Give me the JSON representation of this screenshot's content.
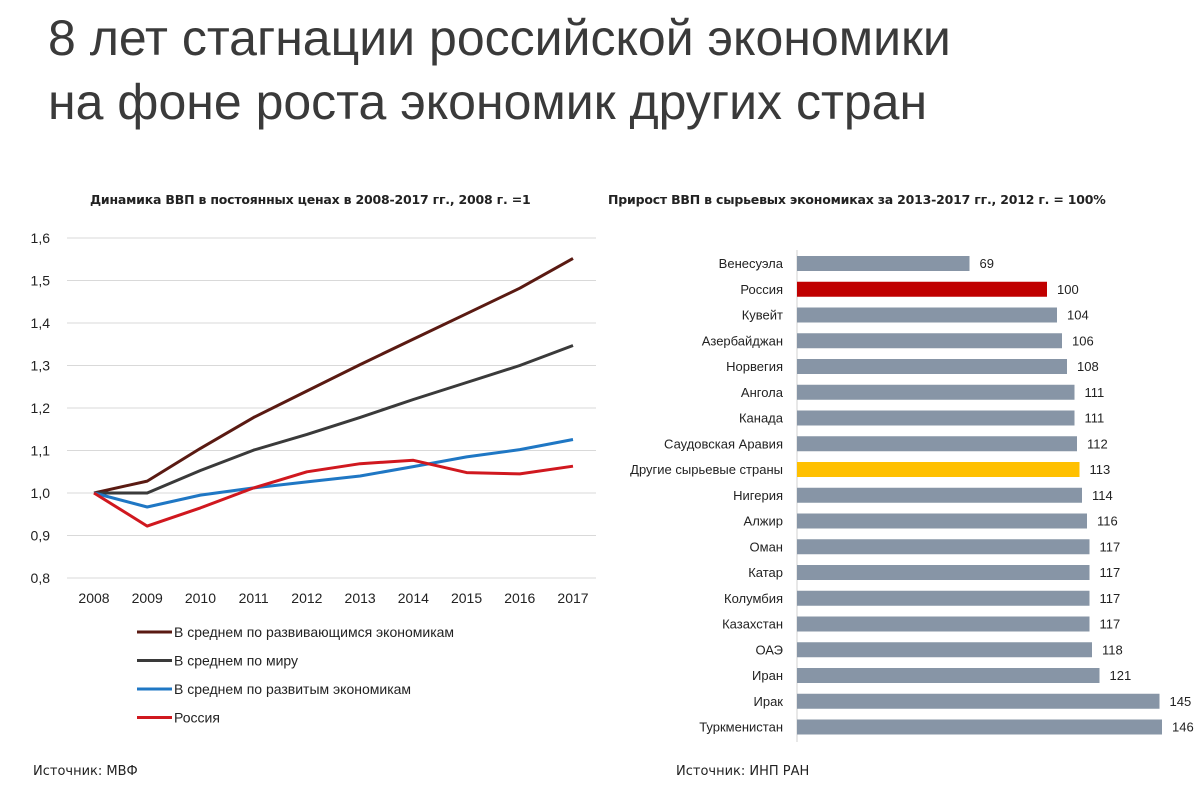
{
  "slide": {
    "title_line1": "8 лет стагнации российской экономики",
    "title_line2": "на фоне роста экономик других стран"
  },
  "left_chart": {
    "title": "Динамика ВВП в постоянных ценах в 2008-2017 гг., 2008 г. =1",
    "source": "Источник: МВФ"
  },
  "right_chart": {
    "title": "Прирост ВВП в сырьевых экономиках за 2013-2017 гг., 2012 г. = 100%",
    "source": "Источник: ИНП РАН"
  },
  "chart_data": [
    {
      "type": "line",
      "title": "Динамика ВВП в постоянных ценах в 2008-2017 гг., 2008 г. =1",
      "x": [
        "2008",
        "2009",
        "2010",
        "2011",
        "2012",
        "2013",
        "2014",
        "2015",
        "2016",
        "2017"
      ],
      "ylim": [
        0.8,
        1.6
      ],
      "yticks": [
        "0,8",
        "0,9",
        "1,0",
        "1,1",
        "1,2",
        "1,3",
        "1,4",
        "1,5",
        "1,6"
      ],
      "grid": true,
      "legend_position": "bottom-left",
      "series": [
        {
          "name": "В среднем по развивающимся экономикам",
          "color": "#5a1a12",
          "values": [
            1.0,
            1.028,
            1.105,
            1.178,
            1.24,
            1.302,
            1.362,
            1.422,
            1.482,
            1.552
          ]
        },
        {
          "name": "В среднем по миру",
          "color": "#3a3a3a",
          "values": [
            1.0,
            1.0,
            1.053,
            1.101,
            1.138,
            1.178,
            1.22,
            1.26,
            1.3,
            1.347
          ]
        },
        {
          "name": "В среднем по развитым экономикам",
          "color": "#1f77c4",
          "values": [
            1.0,
            0.967,
            0.995,
            1.012,
            1.026,
            1.04,
            1.062,
            1.085,
            1.102,
            1.126
          ]
        },
        {
          "name": "Россия",
          "color": "#d0181f",
          "values": [
            1.0,
            0.922,
            0.965,
            1.012,
            1.05,
            1.069,
            1.077,
            1.048,
            1.045,
            1.063
          ]
        }
      ]
    },
    {
      "type": "bar",
      "orientation": "horizontal",
      "title": "Прирост ВВП в сырьевых экономиках за 2013-2017 гг., 2012 г. = 100%",
      "categories": [
        "Венесуэла",
        "Россия",
        "Кувейт",
        "Азербайджан",
        "Норвегия",
        "Ангола",
        "Канада",
        "Саудовская Аравия",
        "Другие сырьевые страны",
        "Нигерия",
        "Алжир",
        "Оман",
        "Катар",
        "Колумбия",
        "Казахстан",
        "ОАЭ",
        "Иран",
        "Ирак",
        "Туркменистан"
      ],
      "values": [
        69,
        100,
        104,
        106,
        108,
        111,
        111,
        112,
        113,
        114,
        116,
        117,
        117,
        117,
        117,
        118,
        121,
        145,
        146
      ],
      "colors": {
        "default": "#8795a6",
        "Россия": "#c00000",
        "Другие сырьевые страны": "#ffc000"
      }
    }
  ]
}
